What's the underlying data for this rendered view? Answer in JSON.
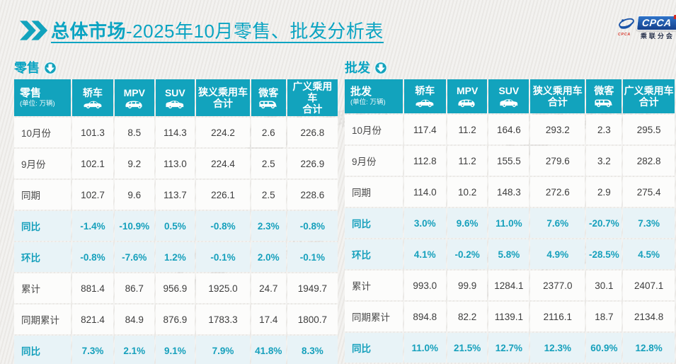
{
  "page": {
    "title_emphasis": "总体市场",
    "title_rest": "-2025年10月零售、批发分析表"
  },
  "logo": {
    "brand": "CPCA",
    "sub_brand": "乘联分会",
    "swoosh_caption": "CPCA"
  },
  "watermark": {
    "text": "乘联分会"
  },
  "colors": {
    "accent_teal": "#12a3bd",
    "header_bg": "#12a3bd",
    "highlight_row_bg": "#e8f3f7",
    "highlight_text": "#16a0bc",
    "row_bg": "#fcfcfb",
    "body_text": "#3d3d3d",
    "page_bg": "#f1efed",
    "logo_blue": "#16418c",
    "logo_red": "#d42b1e"
  },
  "columns": [
    {
      "id": "sedan",
      "line1": "轿车",
      "line2": "",
      "icon": "sedan-icon"
    },
    {
      "id": "mpv",
      "line1": "MPV",
      "line2": "",
      "icon": "mpv-icon"
    },
    {
      "id": "suv",
      "line1": "SUV",
      "line2": "",
      "icon": "suv-icon"
    },
    {
      "id": "narrow-pv-total",
      "line1": "狭义乘用车",
      "line2": "合计",
      "icon": ""
    },
    {
      "id": "microvan",
      "line1": "微客",
      "line2": "",
      "icon": "microvan-icon"
    },
    {
      "id": "broad-pv-total",
      "line1": "广义乘用车",
      "line2": "合计",
      "icon": ""
    }
  ],
  "tables": [
    {
      "section_label": "零售",
      "corner_label": "零售",
      "unit": "(单位: 万辆)",
      "rows": [
        {
          "label": "10月份",
          "type": "normal",
          "values": [
            "101.3",
            "8.5",
            "114.3",
            "224.2",
            "2.6",
            "226.8"
          ]
        },
        {
          "label": "9月份",
          "type": "normal",
          "values": [
            "102.1",
            "9.2",
            "113.0",
            "224.4",
            "2.5",
            "226.9"
          ]
        },
        {
          "label": "同期",
          "type": "normal",
          "values": [
            "102.7",
            "9.6",
            "113.7",
            "226.1",
            "2.5",
            "228.6"
          ]
        },
        {
          "label": "同比",
          "type": "pct",
          "values": [
            "-1.4%",
            "-10.9%",
            "0.5%",
            "-0.8%",
            "2.3%",
            "-0.8%"
          ]
        },
        {
          "label": "环比",
          "type": "pct",
          "values": [
            "-0.8%",
            "-7.6%",
            "1.2%",
            "-0.1%",
            "2.0%",
            "-0.1%"
          ]
        },
        {
          "label": "累计",
          "type": "normal",
          "values": [
            "881.4",
            "86.7",
            "956.9",
            "1925.0",
            "24.7",
            "1949.7"
          ]
        },
        {
          "label": "同期累计",
          "type": "normal",
          "values": [
            "821.4",
            "84.9",
            "876.9",
            "1783.3",
            "17.4",
            "1800.7"
          ]
        },
        {
          "label": "同比",
          "type": "pct",
          "values": [
            "7.3%",
            "2.1%",
            "9.1%",
            "7.9%",
            "41.8%",
            "8.3%"
          ]
        }
      ]
    },
    {
      "section_label": "批发",
      "corner_label": "批发",
      "unit": "(单位: 万辆)",
      "rows": [
        {
          "label": "10月份",
          "type": "normal",
          "values": [
            "117.4",
            "11.2",
            "164.6",
            "293.2",
            "2.3",
            "295.5"
          ]
        },
        {
          "label": "9月份",
          "type": "normal",
          "values": [
            "112.8",
            "11.2",
            "155.5",
            "279.6",
            "3.2",
            "282.8"
          ]
        },
        {
          "label": "同期",
          "type": "normal",
          "values": [
            "114.0",
            "10.2",
            "148.3",
            "272.6",
            "2.9",
            "275.4"
          ]
        },
        {
          "label": "同比",
          "type": "pct",
          "values": [
            "3.0%",
            "9.6%",
            "11.0%",
            "7.6%",
            "-20.7%",
            "7.3%"
          ]
        },
        {
          "label": "环比",
          "type": "pct",
          "values": [
            "4.1%",
            "-0.2%",
            "5.8%",
            "4.9%",
            "-28.5%",
            "4.5%"
          ]
        },
        {
          "label": "累计",
          "type": "normal",
          "values": [
            "993.0",
            "99.9",
            "1284.1",
            "2377.0",
            "30.1",
            "2407.1"
          ]
        },
        {
          "label": "同期累计",
          "type": "normal",
          "values": [
            "894.8",
            "82.2",
            "1139.1",
            "2116.1",
            "18.7",
            "2134.8"
          ]
        },
        {
          "label": "同比",
          "type": "pct",
          "values": [
            "11.0%",
            "21.5%",
            "12.7%",
            "12.3%",
            "60.9%",
            "12.8%"
          ]
        }
      ]
    }
  ],
  "layout": {
    "col_widths": [
      "18%",
      "13%",
      "12.5%",
      "12.5%",
      "17%",
      "11%",
      "16%"
    ]
  }
}
